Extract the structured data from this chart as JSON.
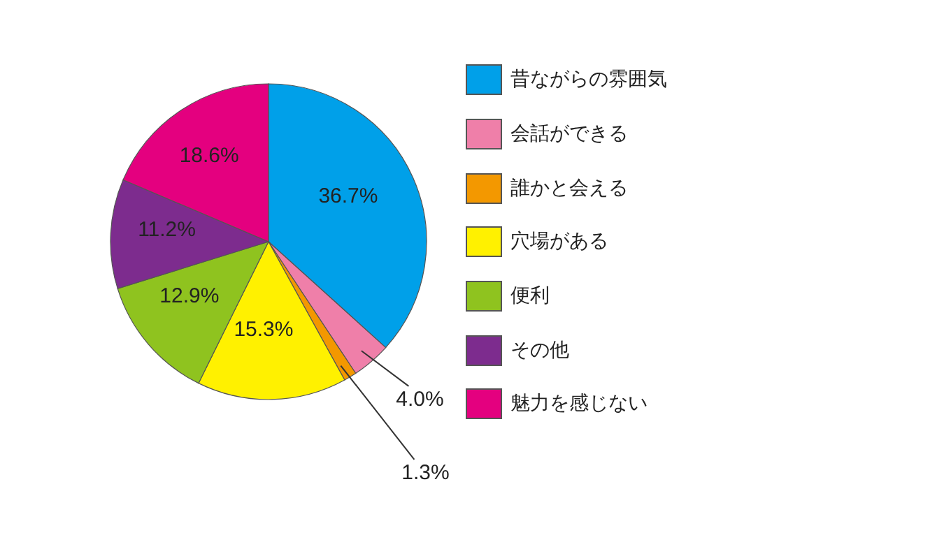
{
  "chart_data": {
    "type": "pie",
    "categories": [
      "昔ながらの雰囲気",
      "会話ができる",
      "誰かと会える",
      "穴場がある",
      "便利",
      "その他",
      "魅力を感じない"
    ],
    "values": [
      36.7,
      4.0,
      1.3,
      15.3,
      12.9,
      11.2,
      18.6
    ],
    "value_labels": [
      "36.7%",
      "4.0%",
      "1.3%",
      "15.3%",
      "12.9%",
      "11.2%",
      "18.6%"
    ],
    "colors": [
      "#00a0e9",
      "#ef7fa9",
      "#f39800",
      "#fff100",
      "#8fc31f",
      "#7d2c8e",
      "#e4007f"
    ],
    "legend": "right"
  }
}
